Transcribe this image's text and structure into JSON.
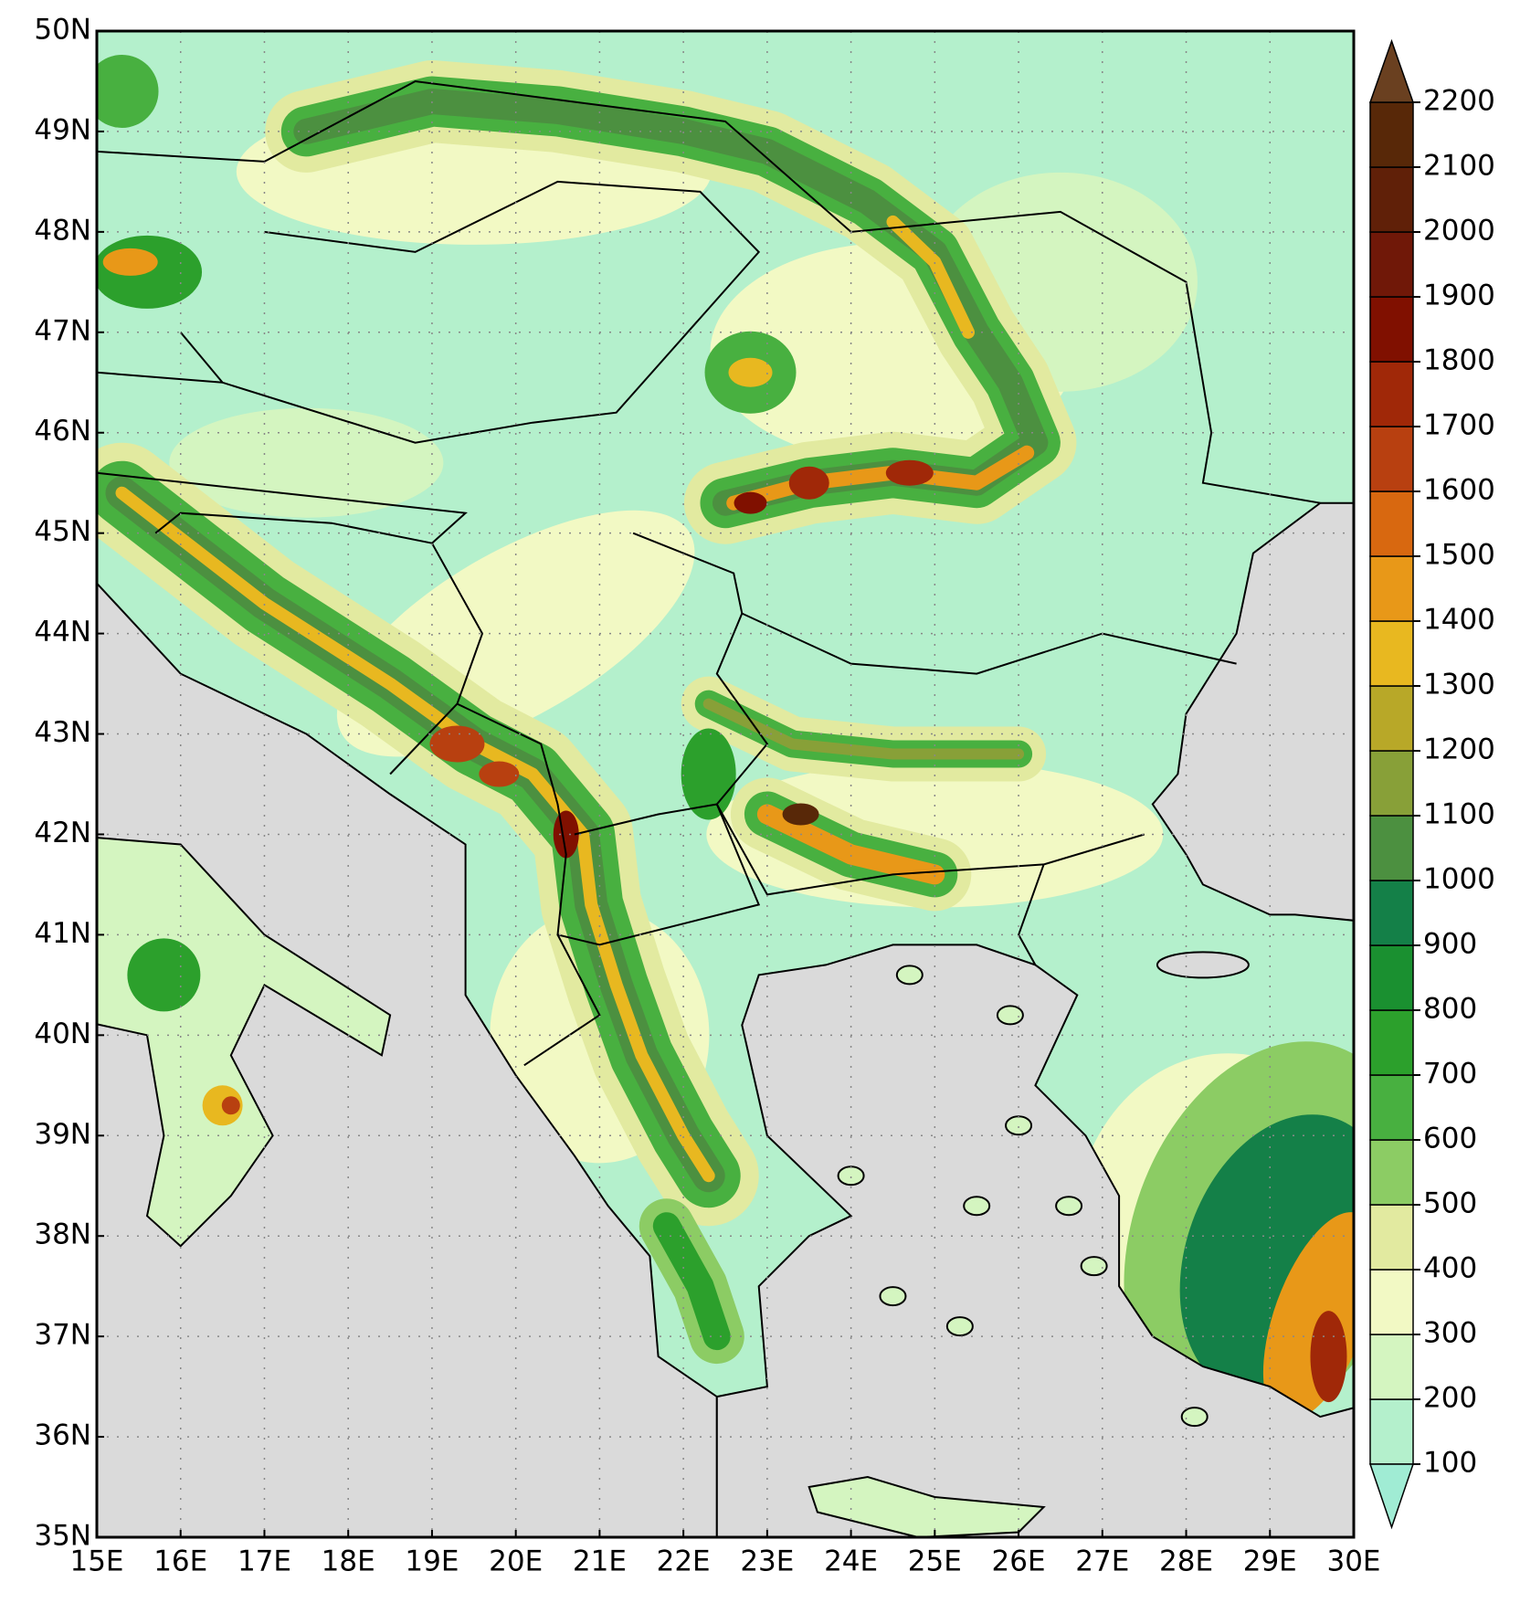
{
  "map": {
    "xticks": [
      {
        "value": 15,
        "label": "15E"
      },
      {
        "value": 16,
        "label": "16E"
      },
      {
        "value": 17,
        "label": "17E"
      },
      {
        "value": 18,
        "label": "18E"
      },
      {
        "value": 19,
        "label": "19E"
      },
      {
        "value": 20,
        "label": "20E"
      },
      {
        "value": 21,
        "label": "21E"
      },
      {
        "value": 22,
        "label": "22E"
      },
      {
        "value": 23,
        "label": "23E"
      },
      {
        "value": 24,
        "label": "24E"
      },
      {
        "value": 25,
        "label": "25E"
      },
      {
        "value": 26,
        "label": "26E"
      },
      {
        "value": 27,
        "label": "27E"
      },
      {
        "value": 28,
        "label": "28E"
      },
      {
        "value": 29,
        "label": "29E"
      },
      {
        "value": 30,
        "label": "30E"
      }
    ],
    "yticks": [
      {
        "value": 35,
        "label": "35N"
      },
      {
        "value": 36,
        "label": "36N"
      },
      {
        "value": 37,
        "label": "37N"
      },
      {
        "value": 38,
        "label": "38N"
      },
      {
        "value": 39,
        "label": "39N"
      },
      {
        "value": 40,
        "label": "40N"
      },
      {
        "value": 41,
        "label": "41N"
      },
      {
        "value": 42,
        "label": "42N"
      },
      {
        "value": 43,
        "label": "43N"
      },
      {
        "value": 44,
        "label": "44N"
      },
      {
        "value": 45,
        "label": "45N"
      },
      {
        "value": 46,
        "label": "46N"
      },
      {
        "value": 47,
        "label": "47N"
      },
      {
        "value": 48,
        "label": "48N"
      },
      {
        "value": 49,
        "label": "49N"
      },
      {
        "value": 50,
        "label": "50N"
      }
    ],
    "xlim": [
      15,
      30
    ],
    "ylim": [
      35,
      50
    ],
    "grid": true,
    "colorbar": {
      "levels": [
        100,
        200,
        300,
        400,
        500,
        600,
        700,
        800,
        900,
        1000,
        1100,
        1200,
        1300,
        1400,
        1500,
        1600,
        1700,
        1800,
        1900,
        2000,
        2100,
        2200
      ],
      "colors": [
        "#a0ecd4",
        "#b4f0cc",
        "#d4f5c0",
        "#f2f9c4",
        "#e2eaa0",
        "#8ccc64",
        "#48b040",
        "#2ca02c",
        "#1a9030",
        "#148048",
        "#4c9040",
        "#88a038",
        "#b8a828",
        "#e8b820",
        "#e89818",
        "#d86810",
        "#b84010",
        "#a02808",
        "#801000",
        "#701808",
        "#602008",
        "#582808",
        "#6a4020"
      ]
    }
  }
}
